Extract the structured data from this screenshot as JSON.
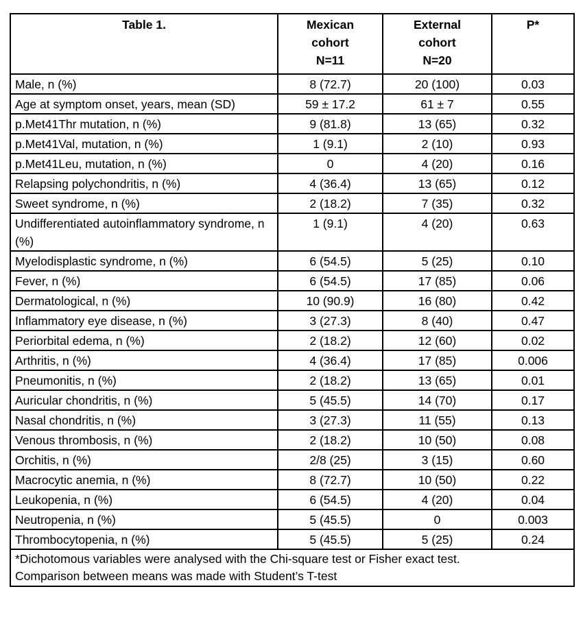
{
  "table": {
    "headers": [
      "Table 1.",
      "Mexican cohort N=11",
      "External cohort N=20",
      "P*"
    ],
    "header_lines": [
      [
        "Table 1."
      ],
      [
        "Mexican",
        "cohort",
        "N=11"
      ],
      [
        "External",
        "cohort",
        "N=20"
      ],
      [
        "P*"
      ]
    ],
    "rows": [
      [
        "Male, n (%)",
        "8 (72.7)",
        "20 (100)",
        "0.03"
      ],
      [
        "Age at symptom onset, years, mean (SD)",
        "59 ± 17.2",
        "61 ± 7",
        "0.55"
      ],
      [
        "p.Met41Thr mutation, n (%)",
        "9 (81.8)",
        "13 (65)",
        "0.32"
      ],
      [
        "p.Met41Val,  mutation, n (%)",
        "1 (9.1)",
        "2 (10)",
        "0.93"
      ],
      [
        "p.Met41Leu, mutation, n (%)",
        "0",
        "4 (20)",
        "0.16"
      ],
      [
        "Relapsing polychondritis, n (%)",
        "4 (36.4)",
        "13 (65)",
        "0.12"
      ],
      [
        "Sweet syndrome, n (%)",
        "2 (18.2)",
        "7 (35)",
        "0.32"
      ],
      [
        "Undifferentiated autoinflammatory syndrome, n (%)",
        "1 (9.1)",
        "4 (20)",
        "0.63"
      ],
      [
        "Myelodisplastic syndrome, n (%)",
        "6 (54.5)",
        "5 (25)",
        "0.10"
      ],
      [
        "Fever, n (%)",
        "6 (54.5)",
        "17 (85)",
        "0.06"
      ],
      [
        "Dermatological, n (%)",
        "10 (90.9)",
        "16 (80)",
        "0.42"
      ],
      [
        "Inflammatory eye disease, n (%)",
        "3 (27.3)",
        "8 (40)",
        "0.47"
      ],
      [
        "Periorbital edema, n (%)",
        "2 (18.2)",
        "12 (60)",
        "0.02"
      ],
      [
        "Arthritis, n (%)",
        "4 (36.4)",
        "17 (85)",
        "0.006"
      ],
      [
        "Pneumonitis, n (%)",
        "2 (18.2)",
        "13 (65)",
        "0.01"
      ],
      [
        "Auricular chondritis, n (%)",
        "5 (45.5)",
        "14 (70)",
        "0.17"
      ],
      [
        "Nasal chondritis, n (%)",
        "3 (27.3)",
        "11 (55)",
        "0.13"
      ],
      [
        "Venous thrombosis, n (%)",
        "2 (18.2)",
        "10 (50)",
        "0.08"
      ],
      [
        "Orchitis, n (%)",
        "2/8 (25)",
        "3 (15)",
        "0.60"
      ],
      [
        "Macrocytic anemia, n (%)",
        "8 (72.7)",
        "10 (50)",
        "0.22"
      ],
      [
        "Leukopenia, n (%)",
        "6 (54.5)",
        "4 (20)",
        "0.04"
      ],
      [
        "Neutropenia, n (%)",
        "5 (45.5)",
        "0",
        "0.003"
      ],
      [
        "Thrombocytopenia, n (%)",
        "5 (45.5)",
        "5 (25)",
        "0.24"
      ]
    ],
    "footnote_lines": [
      "*Dichotomous variables were analysed with the Chi-square test or Fisher exact test.",
      "Comparison between means was made with Student’s T-test"
    ]
  }
}
